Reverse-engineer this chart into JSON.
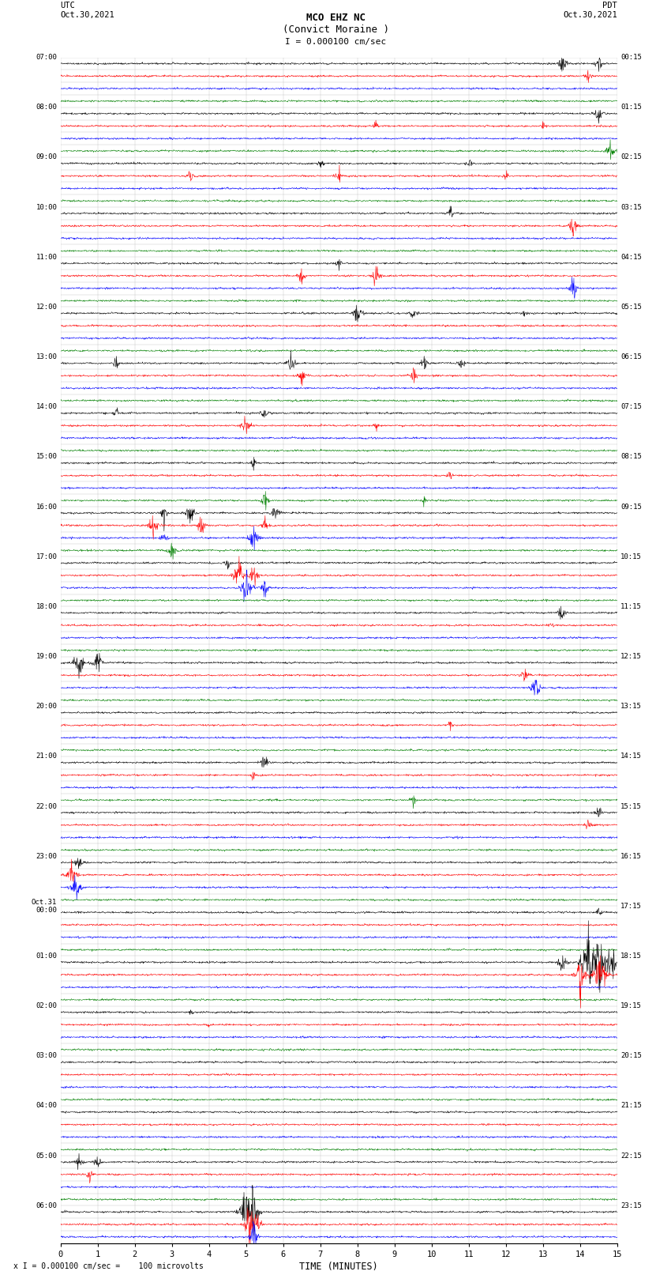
{
  "title_line1": "MCO EHZ NC",
  "title_line2": "(Convict Moraine )",
  "scale_label": "I = 0.000100 cm/sec",
  "footer_label": "x I = 0.000100 cm/sec =    100 microvolts",
  "utc_label": "UTC\nOct.30,2021",
  "pdt_label": "PDT\nOct.30,2021",
  "xlabel": "TIME (MINUTES)",
  "bg_color": "#ffffff",
  "grid_color": "#888888",
  "trace_colors": [
    "black",
    "red",
    "blue",
    "green"
  ],
  "left_times": [
    [
      "07:00",
      0
    ],
    [
      "08:00",
      4
    ],
    [
      "09:00",
      8
    ],
    [
      "10:00",
      12
    ],
    [
      "11:00",
      16
    ],
    [
      "12:00",
      20
    ],
    [
      "13:00",
      24
    ],
    [
      "14:00",
      28
    ],
    [
      "15:00",
      32
    ],
    [
      "16:00",
      36
    ],
    [
      "17:00",
      40
    ],
    [
      "18:00",
      44
    ],
    [
      "19:00",
      48
    ],
    [
      "20:00",
      52
    ],
    [
      "21:00",
      56
    ],
    [
      "22:00",
      60
    ],
    [
      "23:00",
      64
    ],
    [
      "Oct.31\n00:00",
      68
    ],
    [
      "01:00",
      72
    ],
    [
      "02:00",
      76
    ],
    [
      "03:00",
      80
    ],
    [
      "04:00",
      84
    ],
    [
      "05:00",
      88
    ],
    [
      "06:00",
      92
    ]
  ],
  "right_times": [
    [
      "00:15",
      0
    ],
    [
      "01:15",
      4
    ],
    [
      "02:15",
      8
    ],
    [
      "03:15",
      12
    ],
    [
      "04:15",
      16
    ],
    [
      "05:15",
      20
    ],
    [
      "06:15",
      24
    ],
    [
      "07:15",
      28
    ],
    [
      "08:15",
      32
    ],
    [
      "09:15",
      36
    ],
    [
      "10:15",
      40
    ],
    [
      "11:15",
      44
    ],
    [
      "12:15",
      48
    ],
    [
      "13:15",
      52
    ],
    [
      "14:15",
      56
    ],
    [
      "15:15",
      60
    ],
    [
      "16:15",
      64
    ],
    [
      "17:15",
      68
    ],
    [
      "18:15",
      72
    ],
    [
      "19:15",
      76
    ],
    [
      "20:15",
      80
    ],
    [
      "21:15",
      84
    ],
    [
      "22:15",
      88
    ],
    [
      "23:15",
      92
    ]
  ],
  "num_rows": 95,
  "xmin": 0,
  "xmax": 15,
  "xticks": [
    0,
    1,
    2,
    3,
    4,
    5,
    6,
    7,
    8,
    9,
    10,
    11,
    12,
    13,
    14,
    15
  ],
  "noise_amplitude": 0.09,
  "row_trace_amplitude": 0.38
}
